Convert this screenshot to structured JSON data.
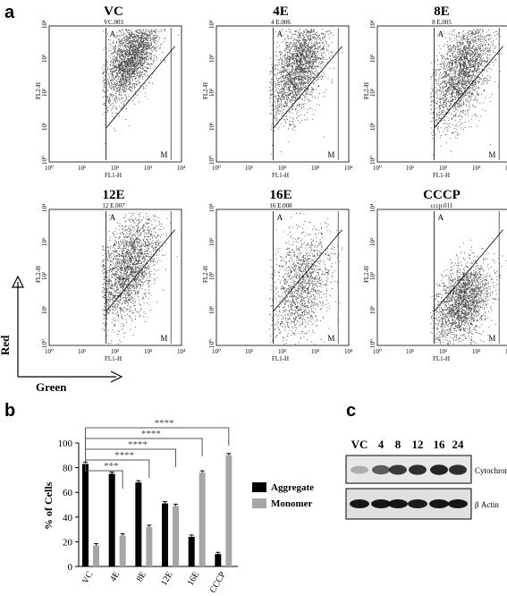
{
  "panel_labels": {
    "a": "a",
    "b": "b",
    "c": "c"
  },
  "flow": {
    "gates": {
      "aggregate": "A",
      "monomer": "M"
    },
    "x_axis_label": "FL1-H",
    "y_axis_label": "FL2-H",
    "tick_labels": [
      "10⁰",
      "10¹",
      "10²",
      "10³",
      "10⁴"
    ],
    "plots": [
      {
        "title": "VC",
        "sample": "VC.003"
      },
      {
        "title": "4E",
        "sample": "4 E.006"
      },
      {
        "title": "8E",
        "sample": "8 E.005"
      },
      {
        "title": "12E",
        "sample": "12 E.007"
      },
      {
        "title": "16E",
        "sample": "16 E.008"
      },
      {
        "title": "CCCP",
        "sample": "cccp.011"
      }
    ],
    "arrow_y_label": "Red",
    "arrow_x_label": "Green"
  },
  "chart_data": {
    "type": "bar",
    "categories": [
      "VC",
      "4E",
      "8E",
      "12E",
      "16E",
      "CCCP"
    ],
    "series": [
      {
        "name": "Aggregate",
        "color": "#000000",
        "values": [
          83,
          75,
          68,
          51,
          24,
          10
        ]
      },
      {
        "name": "Monomer",
        "color": "#a6a6a6",
        "values": [
          17,
          25,
          32,
          49,
          76,
          90
        ]
      }
    ],
    "ylabel": "% of Cells",
    "ylim": [
      0,
      100
    ],
    "yticks": [
      0,
      20,
      40,
      60,
      80,
      100
    ],
    "legend_position": "right",
    "significance": [
      {
        "target": "4E",
        "label": "***"
      },
      {
        "target": "8E",
        "label": "****"
      },
      {
        "target": "12E",
        "label": "****"
      },
      {
        "target": "16E",
        "label": "****"
      },
      {
        "target": "CCCP",
        "label": "****"
      }
    ]
  },
  "western": {
    "lanes": [
      "VC",
      "4",
      "8",
      "12",
      "16",
      "24"
    ],
    "bands": [
      "Cytochrome C",
      "β Actin"
    ],
    "cytochrome_intensity": [
      0.25,
      0.6,
      0.75,
      0.8,
      0.85,
      0.8
    ],
    "actin_intensity": [
      0.9,
      0.9,
      0.9,
      0.88,
      0.9,
      0.9
    ]
  }
}
